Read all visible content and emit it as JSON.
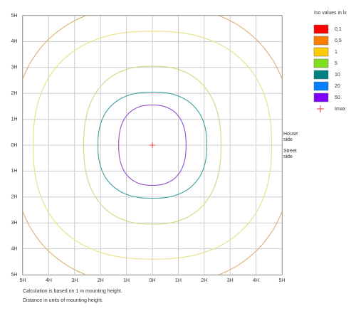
{
  "chart_data": {
    "type": "isolux",
    "xlim": [
      -5,
      5
    ],
    "ylim": [
      -5,
      5
    ],
    "xticks": [
      {
        "value": -5,
        "label": "5H"
      },
      {
        "value": -4,
        "label": "4H"
      },
      {
        "value": -3,
        "label": "3H"
      },
      {
        "value": -2,
        "label": "2H"
      },
      {
        "value": -1,
        "label": "1H"
      },
      {
        "value": 0,
        "label": "0H"
      },
      {
        "value": 1,
        "label": "1H"
      },
      {
        "value": 2,
        "label": "2H"
      },
      {
        "value": 3,
        "label": "3H"
      },
      {
        "value": 4,
        "label": "4H"
      },
      {
        "value": 5,
        "label": "5H"
      }
    ],
    "yticks": [
      {
        "value": -5,
        "label": "5H"
      },
      {
        "value": -4,
        "label": "4H"
      },
      {
        "value": -3,
        "label": "3H"
      },
      {
        "value": -2,
        "label": "2H"
      },
      {
        "value": -1,
        "label": "1H"
      },
      {
        "value": 0,
        "label": "0H"
      },
      {
        "value": 1,
        "label": "1H"
      },
      {
        "value": 2,
        "label": "2H"
      },
      {
        "value": 3,
        "label": "3H"
      },
      {
        "value": 4,
        "label": "4H"
      },
      {
        "value": 5,
        "label": "5H"
      }
    ],
    "grid": true,
    "contours": [
      {
        "level": 0.5,
        "color": "#d9b070",
        "rx": 5.4,
        "ry": 5.4
      },
      {
        "level": 1,
        "color": "#e6e080",
        "rx": 4.6,
        "ry": 4.4
      },
      {
        "level": 5,
        "color": "#c0e080",
        "rx": 2.65,
        "ry": 3.05
      },
      {
        "level": 10,
        "color": "#40a0a0",
        "rx": 2.1,
        "ry": 2.05
      },
      {
        "level": 50,
        "color": "#9050d0",
        "rx": 1.3,
        "ry": 1.55
      }
    ],
    "legend": {
      "title": "Iso values in lx",
      "items": [
        {
          "name": "0,1",
          "color": "#ff0000"
        },
        {
          "name": "0,5",
          "color": "#ff8000"
        },
        {
          "name": "1",
          "color": "#ffcc00"
        },
        {
          "name": "5",
          "color": "#80e020"
        },
        {
          "name": "10",
          "color": "#008080"
        },
        {
          "name": "20",
          "color": "#0080ff"
        },
        {
          "name": "50",
          "color": "#8000ff"
        }
      ],
      "imax": "Imax"
    },
    "side_labels": {
      "house": [
        "House",
        "side"
      ],
      "street": [
        "Street",
        "side"
      ]
    },
    "notes": [
      "Calculation is based on 1 m mounting height.",
      "Distance in units of mounting height."
    ]
  }
}
